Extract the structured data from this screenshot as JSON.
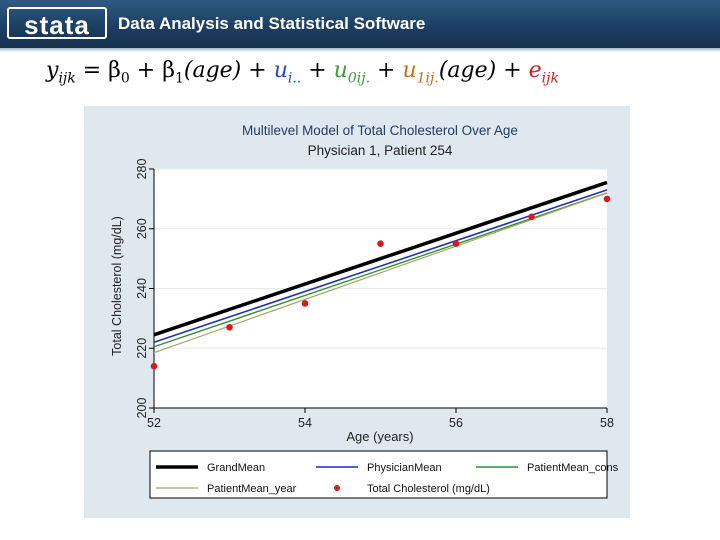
{
  "banner": {
    "logo_text": "stata",
    "title": "Data Analysis and Statistical Software",
    "color": "#1d3f63"
  },
  "equation": {
    "lhs": "y",
    "lhs_sub": "ijk",
    "eq": " = β",
    "b0_sub": "0",
    "plus1": " + β",
    "b1_sub": "1",
    "age1": "(age) + ",
    "u_i": "u",
    "u_i_sub": "i..",
    "plus2": " + ",
    "u0": "u",
    "u0_sub": "0ij.",
    "plus3": " + ",
    "u1": "u",
    "u1_sub": "1ij.",
    "age2": "(age) + ",
    "e": "e",
    "e_sub": "ijk",
    "colors": {
      "u_i": "#1f4fbf",
      "u0": "#3a9a3a",
      "u1": "#c87010",
      "e": "#d02020"
    }
  },
  "chart_data": {
    "type": "line",
    "title": "Multilevel Model of Total Cholesterol Over Age",
    "subtitle": "Physician 1, Patient 254",
    "xlabel": "Age (years)",
    "ylabel": "Total Cholesterol (mg/dL)",
    "xlim": [
      52,
      58
    ],
    "ylim": [
      200,
      280
    ],
    "xticks": [
      52,
      54,
      56,
      58
    ],
    "yticks": [
      200,
      220,
      240,
      260,
      280
    ],
    "grid": true,
    "legend_position": "bottom",
    "series": [
      {
        "name": "GrandMean",
        "kind": "line",
        "color": "#000000",
        "x": [
          52,
          58
        ],
        "y": [
          224.5,
          275.5
        ]
      },
      {
        "name": "PhysicianMean",
        "kind": "line",
        "color": "#1c2fbf",
        "x": [
          52,
          58
        ],
        "y": [
          222,
          273
        ]
      },
      {
        "name": "PatientMean_cons",
        "kind": "line",
        "color": "#2f8f2f",
        "x": [
          52,
          58
        ],
        "y": [
          220.5,
          272
        ]
      },
      {
        "name": "PatientMean_year",
        "kind": "line",
        "color": "#a9a46a",
        "x": [
          52,
          58
        ],
        "y": [
          218.5,
          272
        ]
      },
      {
        "name": "Total Cholesterol (mg/dL)",
        "kind": "scatter",
        "color": "#d41c1c",
        "x": [
          52,
          53,
          54,
          55,
          56,
          57,
          58
        ],
        "y": [
          214,
          227,
          235,
          255,
          255,
          264,
          270
        ]
      }
    ]
  }
}
